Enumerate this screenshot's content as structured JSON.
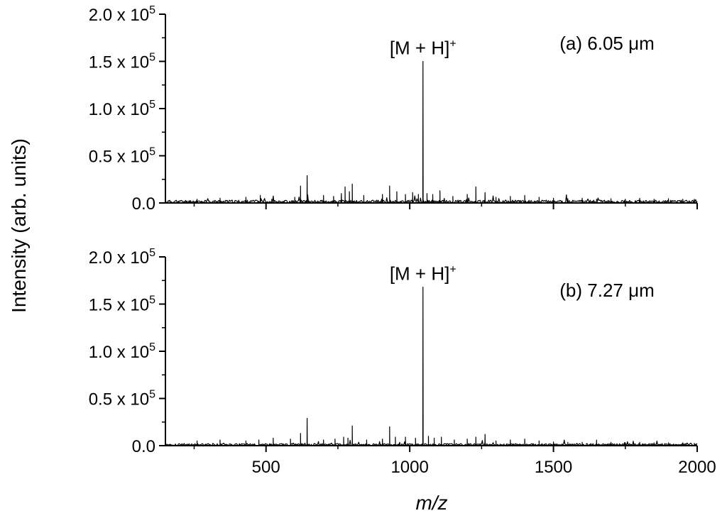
{
  "chart_data": {
    "type": "line",
    "xlabel": "m/z",
    "ylabel": "Intensity (arb. units)",
    "xlim": [
      150,
      2000
    ],
    "x_ticks": [
      500,
      1000,
      1500,
      2000
    ],
    "x_tick_labels": [
      "500",
      "1000",
      "1500",
      "2000"
    ],
    "grid": false,
    "panels": [
      {
        "panel_label": "(a) 6.05 μm",
        "peak_annotation": "[M + H]+",
        "peak_annotation_main": "[M + H]",
        "peak_annotation_sup": "+",
        "annotated_peak_mz": 1046,
        "ylim": [
          0,
          200000
        ],
        "y_ticks": [
          0,
          50000,
          100000,
          150000,
          200000
        ],
        "y_tick_labels": [
          {
            "base": "0.0",
            "exp": ""
          },
          {
            "base": "0.5 x 10",
            "exp": "5"
          },
          {
            "base": "1.0 x 10",
            "exp": "5"
          },
          {
            "base": "1.5 x 10",
            "exp": "5"
          },
          {
            "base": "2.0 x 10",
            "exp": "5"
          }
        ],
        "baseline_noise": 3000,
        "peaks": [
          {
            "mz": 260,
            "y": 4000
          },
          {
            "mz": 340,
            "y": 5000
          },
          {
            "mz": 430,
            "y": 6000
          },
          {
            "mz": 480,
            "y": 8000
          },
          {
            "mz": 520,
            "y": 4000
          },
          {
            "mz": 600,
            "y": 6000
          },
          {
            "mz": 620,
            "y": 18000
          },
          {
            "mz": 643,
            "y": 29000
          },
          {
            "mz": 700,
            "y": 8000
          },
          {
            "mz": 735,
            "y": 7000
          },
          {
            "mz": 762,
            "y": 10000
          },
          {
            "mz": 775,
            "y": 17000
          },
          {
            "mz": 790,
            "y": 12000
          },
          {
            "mz": 800,
            "y": 20000
          },
          {
            "mz": 840,
            "y": 8000
          },
          {
            "mz": 905,
            "y": 9000
          },
          {
            "mz": 930,
            "y": 18000
          },
          {
            "mz": 955,
            "y": 12000
          },
          {
            "mz": 985,
            "y": 9000
          },
          {
            "mz": 1010,
            "y": 11000
          },
          {
            "mz": 1030,
            "y": 9000
          },
          {
            "mz": 1046,
            "y": 150000
          },
          {
            "mz": 1060,
            "y": 10000
          },
          {
            "mz": 1080,
            "y": 9000
          },
          {
            "mz": 1105,
            "y": 13000
          },
          {
            "mz": 1150,
            "y": 7000
          },
          {
            "mz": 1200,
            "y": 9000
          },
          {
            "mz": 1230,
            "y": 17000
          },
          {
            "mz": 1262,
            "y": 11000
          },
          {
            "mz": 1300,
            "y": 6000
          },
          {
            "mz": 1350,
            "y": 7000
          },
          {
            "mz": 1400,
            "y": 8000
          },
          {
            "mz": 1450,
            "y": 6000
          },
          {
            "mz": 1500,
            "y": 5000
          },
          {
            "mz": 1550,
            "y": 4500
          },
          {
            "mz": 1600,
            "y": 5000
          },
          {
            "mz": 1650,
            "y": 4000
          },
          {
            "mz": 1700,
            "y": 4500
          },
          {
            "mz": 1750,
            "y": 4000
          },
          {
            "mz": 1800,
            "y": 5000
          },
          {
            "mz": 1850,
            "y": 4000
          },
          {
            "mz": 1900,
            "y": 4500
          },
          {
            "mz": 1950,
            "y": 4000
          },
          {
            "mz": 1990,
            "y": 4000
          }
        ]
      },
      {
        "panel_label": "(b) 7.27 μm",
        "peak_annotation": "[M + H]+",
        "peak_annotation_main": "[M + H]",
        "peak_annotation_sup": "+",
        "annotated_peak_mz": 1046,
        "ylim": [
          0,
          200000
        ],
        "y_ticks": [
          0,
          50000,
          100000,
          150000,
          200000
        ],
        "y_tick_labels": [
          {
            "base": "0.0",
            "exp": ""
          },
          {
            "base": "0.5 x 10",
            "exp": "5"
          },
          {
            "base": "1.0 x 10",
            "exp": "5"
          },
          {
            "base": "1.5 x 10",
            "exp": "5"
          },
          {
            "base": "2.0 x 10",
            "exp": "5"
          }
        ],
        "baseline_noise": 2200,
        "peaks": [
          {
            "mz": 260,
            "y": 5000
          },
          {
            "mz": 340,
            "y": 6000
          },
          {
            "mz": 430,
            "y": 5000
          },
          {
            "mz": 475,
            "y": 6000
          },
          {
            "mz": 525,
            "y": 8000
          },
          {
            "mz": 585,
            "y": 7000
          },
          {
            "mz": 620,
            "y": 13000
          },
          {
            "mz": 643,
            "y": 29000
          },
          {
            "mz": 700,
            "y": 6000
          },
          {
            "mz": 740,
            "y": 7000
          },
          {
            "mz": 770,
            "y": 9000
          },
          {
            "mz": 785,
            "y": 8000
          },
          {
            "mz": 800,
            "y": 21000
          },
          {
            "mz": 850,
            "y": 6000
          },
          {
            "mz": 905,
            "y": 7000
          },
          {
            "mz": 930,
            "y": 20000
          },
          {
            "mz": 950,
            "y": 9000
          },
          {
            "mz": 985,
            "y": 9000
          },
          {
            "mz": 1020,
            "y": 8000
          },
          {
            "mz": 1046,
            "y": 168000
          },
          {
            "mz": 1065,
            "y": 10000
          },
          {
            "mz": 1085,
            "y": 8000
          },
          {
            "mz": 1110,
            "y": 9000
          },
          {
            "mz": 1155,
            "y": 6000
          },
          {
            "mz": 1200,
            "y": 7000
          },
          {
            "mz": 1230,
            "y": 9000
          },
          {
            "mz": 1262,
            "y": 12000
          },
          {
            "mz": 1300,
            "y": 5000
          },
          {
            "mz": 1350,
            "y": 6000
          },
          {
            "mz": 1400,
            "y": 7000
          },
          {
            "mz": 1450,
            "y": 5000
          },
          {
            "mz": 1500,
            "y": 4000
          },
          {
            "mz": 1550,
            "y": 3500
          },
          {
            "mz": 1600,
            "y": 3500
          },
          {
            "mz": 1650,
            "y": 3000
          },
          {
            "mz": 1700,
            "y": 3500
          },
          {
            "mz": 1750,
            "y": 3000
          },
          {
            "mz": 1800,
            "y": 3500
          },
          {
            "mz": 1850,
            "y": 3000
          },
          {
            "mz": 1900,
            "y": 3000
          },
          {
            "mz": 1950,
            "y": 3000
          },
          {
            "mz": 1990,
            "y": 2500
          }
        ]
      }
    ]
  }
}
